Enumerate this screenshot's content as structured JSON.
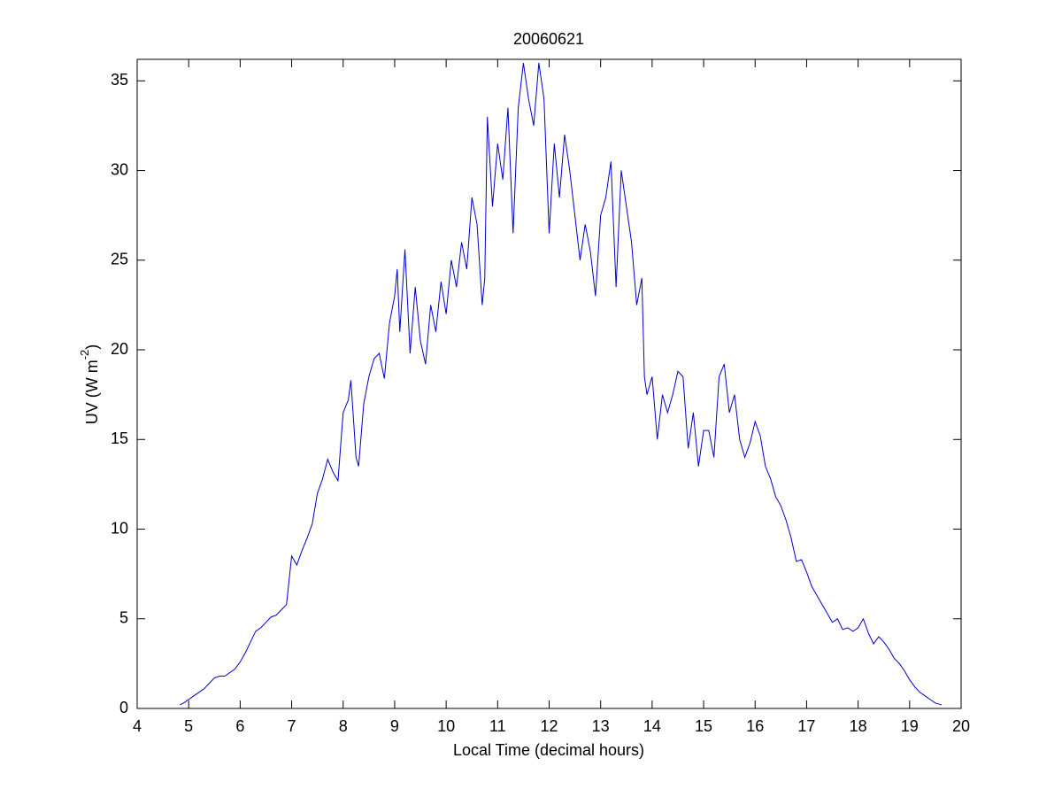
{
  "chart_data": {
    "type": "line",
    "title": "20060621",
    "xlabel": "Local Time (decimal hours)",
    "ylabel_parts": [
      "UV (W m",
      "-2",
      ")"
    ],
    "xlim": [
      4,
      20
    ],
    "xticks": [
      4,
      5,
      6,
      7,
      8,
      9,
      10,
      11,
      12,
      13,
      14,
      15,
      16,
      17,
      18,
      19,
      20
    ],
    "ylim": [
      0,
      36.2
    ],
    "yticks": [
      0,
      5,
      10,
      15,
      20,
      25,
      30,
      35
    ],
    "grid": false,
    "series": [
      {
        "color": "#0000cc",
        "x": [
          4.83,
          4.9,
          5.0,
          5.1,
          5.2,
          5.3,
          5.4,
          5.5,
          5.6,
          5.7,
          5.8,
          5.9,
          6.0,
          6.1,
          6.2,
          6.3,
          6.4,
          6.5,
          6.6,
          6.7,
          6.8,
          6.9,
          7.0,
          7.1,
          7.2,
          7.3,
          7.4,
          7.5,
          7.6,
          7.7,
          7.8,
          7.9,
          8.0,
          8.1,
          8.15,
          8.25,
          8.3,
          8.4,
          8.5,
          8.6,
          8.7,
          8.8,
          8.9,
          9.0,
          9.05,
          9.1,
          9.2,
          9.3,
          9.4,
          9.5,
          9.6,
          9.7,
          9.8,
          9.9,
          10.0,
          10.1,
          10.2,
          10.3,
          10.4,
          10.5,
          10.6,
          10.7,
          10.75,
          10.8,
          10.9,
          11.0,
          11.1,
          11.2,
          11.3,
          11.4,
          11.5,
          11.6,
          11.7,
          11.8,
          11.9,
          12.0,
          12.1,
          12.2,
          12.3,
          12.4,
          12.5,
          12.6,
          12.7,
          12.8,
          12.9,
          13.0,
          13.1,
          13.2,
          13.3,
          13.4,
          13.5,
          13.6,
          13.7,
          13.8,
          13.85,
          13.9,
          14.0,
          14.1,
          14.2,
          14.3,
          14.4,
          14.5,
          14.6,
          14.7,
          14.8,
          14.9,
          15.0,
          15.1,
          15.2,
          15.3,
          15.4,
          15.5,
          15.6,
          15.7,
          15.8,
          15.9,
          16.0,
          16.1,
          16.2,
          16.3,
          16.4,
          16.5,
          16.6,
          16.7,
          16.8,
          16.9,
          17.0,
          17.1,
          17.2,
          17.3,
          17.4,
          17.5,
          17.6,
          17.7,
          17.8,
          17.9,
          18.0,
          18.1,
          18.2,
          18.3,
          18.4,
          18.5,
          18.6,
          18.7,
          18.8,
          18.9,
          19.0,
          19.1,
          19.2,
          19.3,
          19.4,
          19.5,
          19.62
        ],
        "values": [
          0.2,
          0.3,
          0.5,
          0.7,
          0.9,
          1.1,
          1.4,
          1.7,
          1.8,
          1.8,
          2.0,
          2.2,
          2.6,
          3.1,
          3.7,
          4.3,
          4.5,
          4.8,
          5.1,
          5.2,
          5.5,
          5.8,
          8.5,
          8.0,
          8.8,
          9.5,
          10.3,
          12.0,
          12.8,
          13.9,
          13.2,
          12.7,
          16.5,
          17.2,
          18.3,
          14.0,
          13.5,
          17.0,
          18.5,
          19.5,
          19.8,
          18.4,
          21.5,
          23.0,
          24.5,
          21.0,
          25.6,
          19.8,
          23.5,
          20.5,
          19.2,
          22.5,
          21.0,
          23.8,
          22.0,
          25.0,
          23.5,
          26.0,
          24.5,
          28.5,
          27.0,
          22.5,
          24.0,
          33.0,
          28.0,
          31.5,
          29.5,
          33.5,
          26.5,
          33.5,
          36.0,
          34.0,
          32.5,
          36.0,
          34.0,
          26.5,
          31.5,
          28.5,
          32.0,
          30.0,
          27.5,
          25.0,
          27.0,
          25.5,
          23.0,
          27.5,
          28.5,
          30.5,
          23.5,
          30.0,
          28.0,
          26.0,
          22.5,
          24.0,
          18.5,
          17.5,
          18.5,
          15.0,
          17.5,
          16.5,
          17.5,
          18.8,
          18.5,
          14.5,
          16.5,
          13.5,
          15.5,
          15.5,
          14.0,
          18.5,
          19.2,
          16.5,
          17.5,
          15.0,
          14.0,
          14.8,
          16.0,
          15.2,
          13.5,
          12.8,
          11.8,
          11.3,
          10.5,
          9.5,
          8.2,
          8.3,
          7.6,
          6.8,
          6.3,
          5.8,
          5.3,
          4.8,
          5.0,
          4.4,
          4.5,
          4.3,
          4.5,
          5.0,
          4.2,
          3.6,
          4.0,
          3.7,
          3.3,
          2.8,
          2.5,
          2.1,
          1.6,
          1.2,
          0.9,
          0.7,
          0.5,
          0.3,
          0.2
        ]
      }
    ]
  }
}
